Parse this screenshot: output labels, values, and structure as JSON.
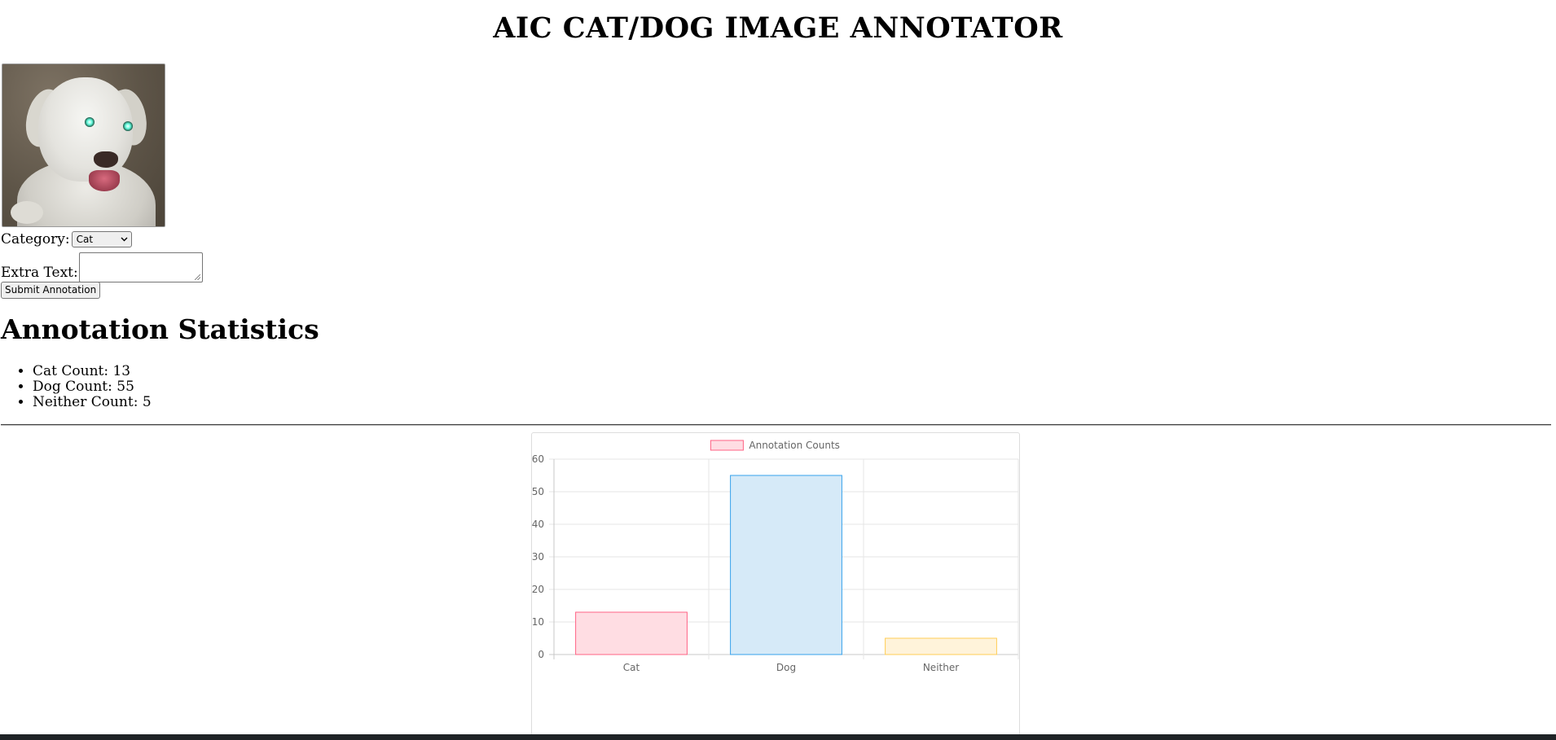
{
  "page": {
    "title": "AIC CAT/DOG IMAGE ANNOTATOR"
  },
  "form": {
    "category_label": "Category:",
    "category_value": "Cat",
    "extra_text_label": "Extra Text:",
    "extra_text_value": "",
    "submit_label": "Submit Annotation"
  },
  "stats": {
    "heading": "Annotation Statistics",
    "items": [
      "Cat Count: 13",
      "Dog Count: 55",
      "Neither Count: 5"
    ]
  },
  "chart_data": {
    "type": "bar",
    "categories": [
      "Cat",
      "Dog",
      "Neither"
    ],
    "series": [
      {
        "name": "Annotation Counts",
        "values": [
          13,
          55,
          5
        ]
      }
    ],
    "ylim": [
      0,
      60
    ],
    "yticks": [
      0,
      10,
      20,
      30,
      40,
      50,
      60
    ],
    "colors": {
      "fill": [
        "#ffdde3",
        "#d6eaf8",
        "#fff3da"
      ],
      "border": [
        "#ff6384",
        "#36a2eb",
        "#ffce56"
      ]
    },
    "legend": "top",
    "grid": true
  },
  "icons": {
    "select_chevron": "chevron-down-icon",
    "textarea_grip": "resize-grip-icon"
  }
}
